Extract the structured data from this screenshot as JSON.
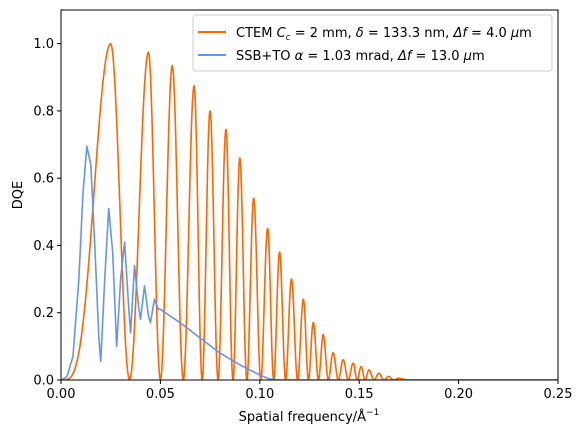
{
  "chart_data": {
    "type": "line",
    "xlabel": "Spatial frequency/Å",
    "xlabel_sup": "−1",
    "ylabel": "DQE",
    "xlim": [
      0.0,
      0.25
    ],
    "ylim": [
      0.0,
      1.1
    ],
    "x_ticks": [
      "0.00",
      "0.05",
      "0.10",
      "0.15",
      "0.20",
      "0.25"
    ],
    "x_tick_values": [
      0.0,
      0.05,
      0.1,
      0.15,
      0.2,
      0.25
    ],
    "y_ticks": [
      "0.0",
      "0.2",
      "0.4",
      "0.6",
      "0.8",
      "1.0"
    ],
    "y_tick_values": [
      0.0,
      0.2,
      0.4,
      0.6,
      0.8,
      1.0
    ],
    "grid": false,
    "legend_position": "top-right",
    "series": [
      {
        "name": "CTEM Cc = 2 mm, δ = 133.3 nm, Δf = 4.0 μm",
        "color": "#ff6600",
        "peaks": [
          [
            0.025,
            1.0
          ],
          [
            0.044,
            0.975
          ],
          [
            0.056,
            0.935
          ],
          [
            0.067,
            0.875
          ],
          [
            0.075,
            0.8
          ],
          [
            0.083,
            0.745
          ],
          [
            0.09,
            0.66
          ],
          [
            0.097,
            0.54
          ],
          [
            0.104,
            0.45
          ],
          [
            0.11,
            0.38
          ],
          [
            0.116,
            0.3
          ],
          [
            0.122,
            0.24
          ],
          [
            0.127,
            0.17
          ],
          [
            0.132,
            0.135
          ],
          [
            0.137,
            0.08
          ],
          [
            0.142,
            0.06
          ],
          [
            0.147,
            0.05
          ],
          [
            0.151,
            0.04
          ],
          [
            0.155,
            0.03
          ],
          [
            0.16,
            0.02
          ],
          [
            0.165,
            0.01
          ],
          [
            0.17,
            0.005
          ]
        ]
      },
      {
        "name": "SSB+TO α = 1.03 mrad, Δf = 13.0 μm",
        "color": "#6495ed",
        "points": [
          [
            0.0,
            0.0
          ],
          [
            0.003,
            0.01
          ],
          [
            0.006,
            0.07
          ],
          [
            0.009,
            0.3
          ],
          [
            0.011,
            0.55
          ],
          [
            0.013,
            0.695
          ],
          [
            0.015,
            0.64
          ],
          [
            0.017,
            0.4
          ],
          [
            0.019,
            0.13
          ],
          [
            0.02,
            0.055
          ],
          [
            0.022,
            0.3
          ],
          [
            0.024,
            0.51
          ],
          [
            0.026,
            0.38
          ],
          [
            0.028,
            0.1
          ],
          [
            0.03,
            0.3
          ],
          [
            0.032,
            0.41
          ],
          [
            0.034,
            0.22
          ],
          [
            0.035,
            0.14
          ],
          [
            0.037,
            0.34
          ],
          [
            0.039,
            0.22
          ],
          [
            0.04,
            0.18
          ],
          [
            0.042,
            0.28
          ],
          [
            0.044,
            0.19
          ],
          [
            0.045,
            0.17
          ],
          [
            0.047,
            0.24
          ],
          [
            0.049,
            0.21
          ],
          [
            0.05,
            0.21
          ],
          [
            0.06,
            0.17
          ],
          [
            0.07,
            0.125
          ],
          [
            0.08,
            0.08
          ],
          [
            0.09,
            0.045
          ],
          [
            0.1,
            0.015
          ],
          [
            0.105,
            0.003
          ],
          [
            0.11,
            0.0
          ],
          [
            0.25,
            0.0
          ]
        ]
      }
    ]
  },
  "legend": {
    "entries": [
      {
        "prefix": "CTEM ",
        "parts": [
          "C",
          "c",
          " = 2 mm, ",
          "δ",
          " = 133.3 nm, ",
          "Δf",
          " = 4.0 ",
          "μ",
          "m"
        ]
      },
      {
        "prefix": "SSB+TO ",
        "parts": [
          "α",
          " = 1.03 mrad, ",
          "Δf",
          " = 13.0 ",
          "μ",
          "m"
        ]
      }
    ]
  }
}
